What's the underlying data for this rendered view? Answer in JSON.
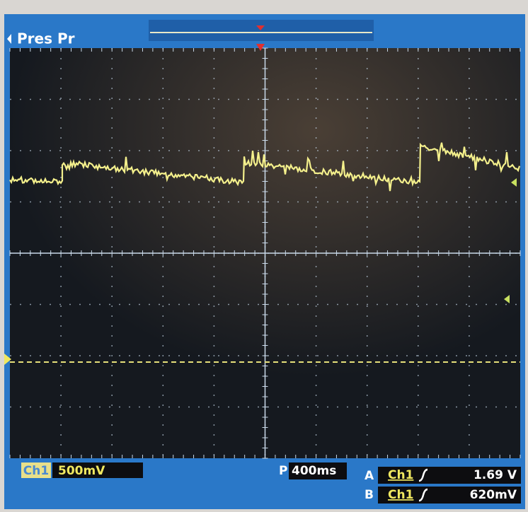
{
  "top_bar": {
    "menu": "Pres Pr"
  },
  "status": {
    "channel": "Ch1",
    "scale": "500mV",
    "position_label": "P",
    "timebase": "400ms",
    "trigger_a": {
      "label": "A",
      "source": "Ch1",
      "level": "1.69 V"
    },
    "trigger_b": {
      "label": "B",
      "source": "Ch1",
      "level": "620mV"
    }
  }
}
